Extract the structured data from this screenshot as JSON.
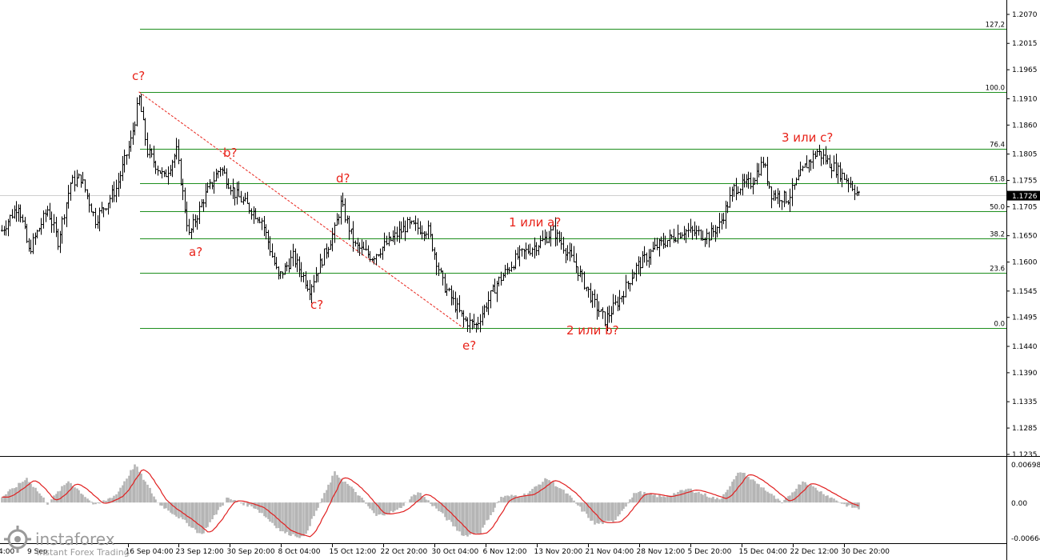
{
  "chart_data": [
    {
      "type": "candlestick",
      "price_axis": {
        "ticks": [
          "1.2070",
          "1.2015",
          "1.1965",
          "1.1910",
          "1.1860",
          "1.1805",
          "1.1755",
          "1.1705",
          "1.1650",
          "1.1600",
          "1.1545",
          "1.1495",
          "1.1440",
          "1.1390",
          "1.1335",
          "1.1285",
          "1.1235"
        ],
        "range": [
          1.1225,
          1.2095
        ],
        "current_price": "1.1726"
      },
      "time_axis": {
        "ticks": [
          "16 Sep 04:00",
          "23 Sep 12:00",
          "30 Sep 20:00",
          "8 Oct 04:00",
          "15 Oct 12:00",
          "22 Oct 20:00",
          "30 Oct 04:00",
          "6 Nov 12:00",
          "13 Nov 20:00",
          "21 Nov 04:00",
          "28 Nov 12:00",
          "5 Dec 20:00",
          "15 Dec 04:00",
          "22 Dec 12:00",
          "30 Dec 20:00"
        ],
        "partial_ticks": [
          "4:00",
          "9 Sep"
        ]
      },
      "price_path": [
        {
          "i": 0,
          "p": 1.166
        },
        {
          "i": 8,
          "p": 1.171
        },
        {
          "i": 13,
          "p": 1.162
        },
        {
          "i": 22,
          "p": 1.17
        },
        {
          "i": 27,
          "p": 1.164
        },
        {
          "i": 33,
          "p": 1.175
        },
        {
          "i": 38,
          "p": 1.176
        },
        {
          "i": 45,
          "p": 1.168
        },
        {
          "i": 55,
          "p": 1.174
        },
        {
          "i": 62,
          "p": 1.183
        },
        {
          "i": 66,
          "p": 1.191
        },
        {
          "i": 70,
          "p": 1.181
        },
        {
          "i": 78,
          "p": 1.176
        },
        {
          "i": 84,
          "p": 1.181
        },
        {
          "i": 90,
          "p": 1.165
        },
        {
          "i": 97,
          "p": 1.172
        },
        {
          "i": 105,
          "p": 1.178
        },
        {
          "i": 112,
          "p": 1.173
        },
        {
          "i": 125,
          "p": 1.168
        },
        {
          "i": 133,
          "p": 1.157
        },
        {
          "i": 140,
          "p": 1.161
        },
        {
          "i": 148,
          "p": 1.155
        },
        {
          "i": 160,
          "p": 1.166
        },
        {
          "i": 163,
          "p": 1.171
        },
        {
          "i": 170,
          "p": 1.163
        },
        {
          "i": 178,
          "p": 1.161
        },
        {
          "i": 195,
          "p": 1.167
        },
        {
          "i": 205,
          "p": 1.166
        },
        {
          "i": 212,
          "p": 1.156
        },
        {
          "i": 222,
          "p": 1.149
        },
        {
          "i": 228,
          "p": 1.148
        },
        {
          "i": 238,
          "p": 1.156
        },
        {
          "i": 248,
          "p": 1.161
        },
        {
          "i": 260,
          "p": 1.164
        },
        {
          "i": 265,
          "p": 1.166
        },
        {
          "i": 275,
          "p": 1.16
        },
        {
          "i": 285,
          "p": 1.152
        },
        {
          "i": 290,
          "p": 1.149
        },
        {
          "i": 297,
          "p": 1.153
        },
        {
          "i": 305,
          "p": 1.159
        },
        {
          "i": 315,
          "p": 1.163
        },
        {
          "i": 328,
          "p": 1.166
        },
        {
          "i": 340,
          "p": 1.165
        },
        {
          "i": 345,
          "p": 1.167
        },
        {
          "i": 352,
          "p": 1.174
        },
        {
          "i": 360,
          "p": 1.175
        },
        {
          "i": 366,
          "p": 1.179
        },
        {
          "i": 370,
          "p": 1.173
        },
        {
          "i": 378,
          "p": 1.172
        },
        {
          "i": 386,
          "p": 1.178
        },
        {
          "i": 392,
          "p": 1.181
        },
        {
          "i": 400,
          "p": 1.178
        },
        {
          "i": 408,
          "p": 1.175
        },
        {
          "i": 412,
          "p": 1.1726
        }
      ],
      "fibonacci": {
        "levels": [
          {
            "label": "127,2",
            "price": 1.2043
          },
          {
            "label": "100.0",
            "price": 1.1923
          },
          {
            "label": "76.4",
            "price": 1.1815
          },
          {
            "label": "61.8",
            "price": 1.175
          },
          {
            "label": "50.0",
            "price": 1.1697
          },
          {
            "label": "38.2",
            "price": 1.1645
          },
          {
            "label": "23.6",
            "price": 1.158
          },
          {
            "label": "0.0",
            "price": 1.1475
          }
        ]
      },
      "trendline": {
        "style": "dashed",
        "color": "#e8231a",
        "from": {
          "i": 66,
          "p": 1.1923
        },
        "to": {
          "i": 222,
          "p": 1.1475
        }
      },
      "wave_labels": [
        "c?",
        "b?",
        "a?",
        "d?",
        "c?",
        "e?",
        "1 или a?",
        "2 или b?",
        "3 или c?"
      ],
      "colors": {
        "candles": "#000000",
        "fib_lines": "#1e8f1e",
        "labels": "#e8231a",
        "current_price_bg": "#000000"
      }
    },
    {
      "type": "histogram",
      "name": "oscillator",
      "y_ticks": [
        "0.00698",
        "0.00",
        "-0.00664"
      ],
      "range": [
        -0.00664,
        0.00698
      ],
      "bar_color": "#b5b5b5",
      "signal_color": "#e02020",
      "path": [
        {
          "i": 0,
          "v": 0.001
        },
        {
          "i": 12,
          "v": 0.0045
        },
        {
          "i": 22,
          "v": -0.0002
        },
        {
          "i": 32,
          "v": 0.004
        },
        {
          "i": 45,
          "v": -0.0006
        },
        {
          "i": 55,
          "v": 0.0015
        },
        {
          "i": 64,
          "v": 0.007
        },
        {
          "i": 75,
          "v": -0.0001
        },
        {
          "i": 88,
          "v": -0.0035
        },
        {
          "i": 96,
          "v": -0.006
        },
        {
          "i": 108,
          "v": 0.0008
        },
        {
          "i": 122,
          "v": -0.001
        },
        {
          "i": 135,
          "v": -0.0055
        },
        {
          "i": 145,
          "v": -0.0065
        },
        {
          "i": 160,
          "v": 0.0055
        },
        {
          "i": 170,
          "v": 0.002
        },
        {
          "i": 180,
          "v": -0.0025
        },
        {
          "i": 190,
          "v": -0.0015
        },
        {
          "i": 200,
          "v": 0.002
        },
        {
          "i": 210,
          "v": -0.0015
        },
        {
          "i": 222,
          "v": -0.0062
        },
        {
          "i": 230,
          "v": -0.0055
        },
        {
          "i": 240,
          "v": 0.001
        },
        {
          "i": 252,
          "v": 0.0015
        },
        {
          "i": 262,
          "v": 0.0045
        },
        {
          "i": 272,
          "v": 0.0015
        },
        {
          "i": 285,
          "v": -0.004
        },
        {
          "i": 294,
          "v": -0.0035
        },
        {
          "i": 305,
          "v": 0.002
        },
        {
          "i": 318,
          "v": 0.001
        },
        {
          "i": 330,
          "v": 0.0025
        },
        {
          "i": 345,
          "v": 0.0005
        },
        {
          "i": 355,
          "v": 0.0058
        },
        {
          "i": 365,
          "v": 0.003
        },
        {
          "i": 375,
          "v": -0.0002
        },
        {
          "i": 385,
          "v": 0.004
        },
        {
          "i": 396,
          "v": 0.0015
        },
        {
          "i": 405,
          "v": -0.0004
        },
        {
          "i": 412,
          "v": -0.0012
        }
      ]
    }
  ],
  "watermark": {
    "brand": "instaforex",
    "tagline": "Instant Forex Trading"
  }
}
